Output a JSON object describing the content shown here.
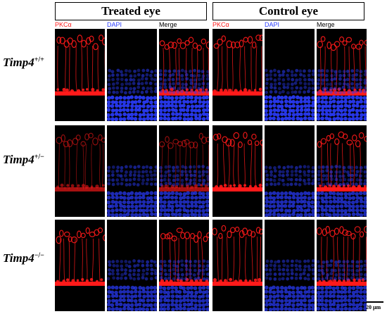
{
  "headers": {
    "treated": "Treated eye",
    "control": "Control eye"
  },
  "channels": {
    "pkca": "PKCα",
    "dapi": "DAPI",
    "merge": "Merge"
  },
  "rows": [
    {
      "gene": "Timp4",
      "genotype": "+/+"
    },
    {
      "gene": "Timp4",
      "genotype": "+/−"
    },
    {
      "gene": "Timp4",
      "genotype": "−/−"
    }
  ],
  "scale_bar": "20 μm",
  "colors": {
    "pkca": "#ff1a1a",
    "dapi": "#2a3cff",
    "merge": "#000000",
    "background": "#000000"
  }
}
